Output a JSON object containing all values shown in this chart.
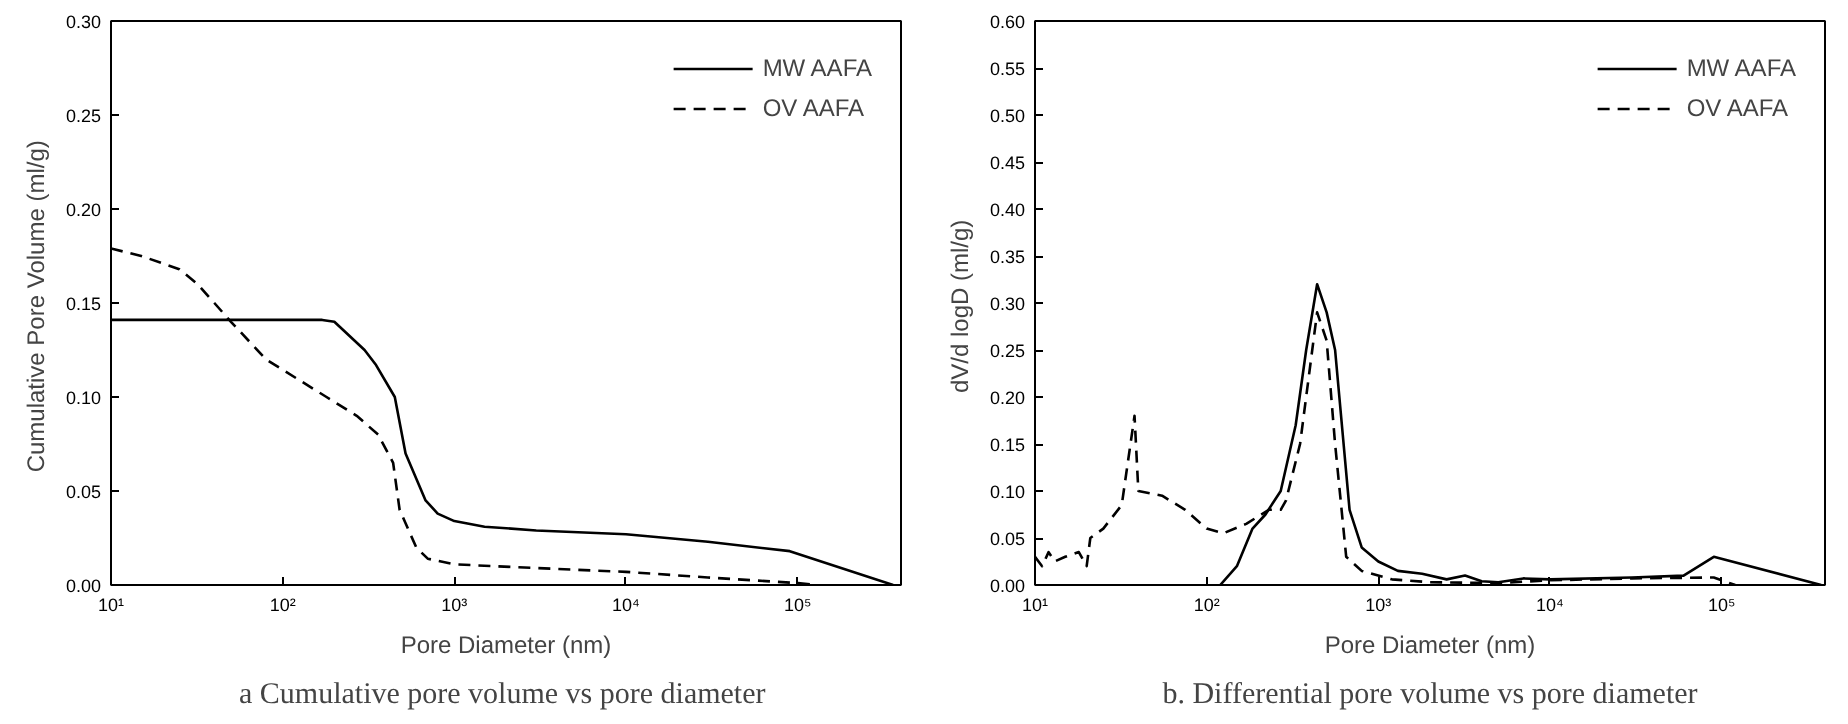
{
  "chart_data": [
    {
      "type": "line",
      "title": "a  Cumulative pore volume vs pore diameter",
      "xlabel": "Pore Diameter (nm)",
      "ylabel": "Cumulative Pore Volume  (ml/g)",
      "log": "x",
      "grid": false,
      "legend": "top right",
      "marker": "none",
      "xlim": [
        10,
        400000
      ],
      "ylim": [
        0,
        0.3
      ],
      "xticks": [
        {
          "value": 10,
          "label": "10¹"
        },
        {
          "value": 100,
          "label": "10²"
        },
        {
          "value": 1000,
          "label": "10³"
        },
        {
          "value": 10000,
          "label": "10⁴"
        },
        {
          "value": 100000,
          "label": "10⁵"
        }
      ],
      "yticks": [
        {
          "value": 0,
          "label": "0.00"
        },
        {
          "value": 0.05,
          "label": "0.05"
        },
        {
          "value": 0.1,
          "label": "0.10"
        },
        {
          "value": 0.15,
          "label": "0.15"
        },
        {
          "value": 0.2,
          "label": "0.20"
        },
        {
          "value": 0.25,
          "label": "0.25"
        },
        {
          "value": 0.3,
          "label": "0.30"
        }
      ],
      "series": [
        {
          "name": "MW AAFA",
          "color": "#000000",
          "line_style": "solid",
          "x": [
            10,
            170,
            200,
            300,
            350,
            450,
            520,
            680,
            800,
            1000,
            1500,
            3000,
            10000,
            30000,
            90000,
            360000
          ],
          "values": [
            0.141,
            0.141,
            0.14,
            0.125,
            0.117,
            0.1,
            0.07,
            0.045,
            0.038,
            0.034,
            0.031,
            0.029,
            0.027,
            0.023,
            0.018,
            0
          ]
        },
        {
          "name": "OV AAFA",
          "color": "#000000",
          "line_style": "dashed",
          "x": [
            10,
            15,
            25,
            32,
            40,
            50,
            80,
            120,
            180,
            270,
            360,
            440,
            480,
            600,
            700,
            1000,
            3000,
            10000,
            30000,
            100000,
            130000
          ],
          "values": [
            0.179,
            0.175,
            0.168,
            0.16,
            0.15,
            0.14,
            0.12,
            0.11,
            0.1,
            0.09,
            0.08,
            0.065,
            0.04,
            0.02,
            0.014,
            0.011,
            0.009,
            0.007,
            0.004,
            0.001,
            0
          ]
        }
      ]
    },
    {
      "type": "line",
      "title": "b. Differential pore volume vs pore diameter",
      "xlabel": "Pore Diameter (nm)",
      "ylabel": "dV/d logD  (ml/g)",
      "log": "x",
      "grid": false,
      "legend": "top right",
      "marker": "none",
      "xlim": [
        10,
        400000
      ],
      "ylim": [
        0,
        0.6
      ],
      "xticks": [
        {
          "value": 10,
          "label": "10¹"
        },
        {
          "value": 100,
          "label": "10²"
        },
        {
          "value": 1000,
          "label": "10³"
        },
        {
          "value": 10000,
          "label": "10⁴"
        },
        {
          "value": 100000,
          "label": "10⁵"
        }
      ],
      "yticks": [
        {
          "value": 0,
          "label": "0.00"
        },
        {
          "value": 0.05,
          "label": "0.05"
        },
        {
          "value": 0.1,
          "label": "0.10"
        },
        {
          "value": 0.15,
          "label": "0.15"
        },
        {
          "value": 0.2,
          "label": "0.20"
        },
        {
          "value": 0.25,
          "label": "0.25"
        },
        {
          "value": 0.3,
          "label": "0.30"
        },
        {
          "value": 0.35,
          "label": "0.35"
        },
        {
          "value": 0.4,
          "label": "0.40"
        },
        {
          "value": 0.45,
          "label": "0.45"
        },
        {
          "value": 0.5,
          "label": "0.50"
        },
        {
          "value": 0.55,
          "label": "0.55"
        },
        {
          "value": 0.6,
          "label": "0.60"
        }
      ],
      "series": [
        {
          "name": "MW AAFA",
          "color": "#000000",
          "line_style": "solid",
          "x": [
            120,
            150,
            185,
            220,
            270,
            330,
            380,
            440,
            500,
            560,
            680,
            800,
            1000,
            1300,
            1800,
            2500,
            3200,
            4000,
            5000,
            7000,
            10000,
            30000,
            60000,
            90000,
            380000
          ],
          "values": [
            0,
            0.02,
            0.06,
            0.075,
            0.1,
            0.17,
            0.25,
            0.32,
            0.29,
            0.25,
            0.08,
            0.04,
            0.025,
            0.015,
            0.012,
            0.006,
            0.01,
            0.004,
            0.003,
            0.007,
            0.006,
            0.008,
            0.01,
            0.03,
            0
          ]
        },
        {
          "name": "OV AAFA",
          "color": "#000000",
          "line_style": "dashed",
          "x": [
            10,
            11,
            12,
            13,
            15,
            18,
            20,
            21,
            25,
            32,
            38,
            40,
            55,
            75,
            100,
            125,
            170,
            230,
            270,
            290,
            350,
            440,
            500,
            560,
            650,
            800,
            1200,
            2000,
            5000,
            10000,
            30000,
            90000,
            120000
          ],
          "values": [
            0.03,
            0.02,
            0.035,
            0.025,
            0.03,
            0.035,
            0.02,
            0.05,
            0.06,
            0.085,
            0.18,
            0.1,
            0.095,
            0.08,
            0.06,
            0.055,
            0.065,
            0.08,
            0.08,
            0.09,
            0.15,
            0.29,
            0.26,
            0.15,
            0.03,
            0.015,
            0.006,
            0.003,
            0.002,
            0.005,
            0.007,
            0.008,
            0
          ]
        }
      ]
    }
  ]
}
